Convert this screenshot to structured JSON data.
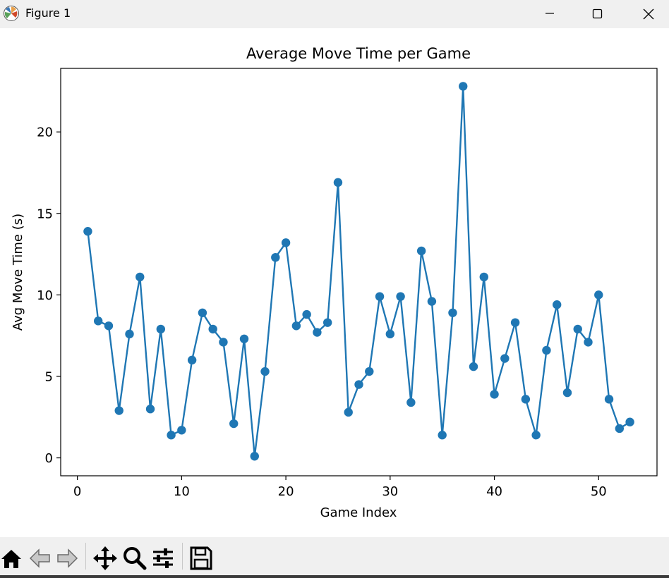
{
  "window": {
    "title": "Figure 1",
    "icons": [
      "matplotlib-logo-icon",
      "minimize-icon",
      "maximize-icon",
      "close-icon"
    ]
  },
  "toolbar": {
    "buttons": [
      "home-icon",
      "back-arrow-icon",
      "forward-arrow-icon",
      "pan-move-icon",
      "zoom-magnifier-icon",
      "configure-subplots-icon",
      "save-floppy-icon"
    ]
  },
  "colors": {
    "series": "#1f77b4",
    "chrome": "#f0f0f0"
  },
  "chart_data": {
    "type": "line",
    "title": "Average Move Time per Game",
    "xlabel": "Game Index",
    "ylabel": "Avg Move Time (s)",
    "xlim": [
      -1.6,
      55.6
    ],
    "ylim": [
      -1.1,
      23.9
    ],
    "xticks": [
      0,
      10,
      20,
      30,
      40,
      50
    ],
    "yticks": [
      0,
      5,
      10,
      15,
      20
    ],
    "grid": false,
    "marker": "circle",
    "x": [
      1,
      2,
      3,
      4,
      5,
      6,
      7,
      8,
      9,
      10,
      11,
      12,
      13,
      14,
      15,
      16,
      17,
      18,
      19,
      20,
      21,
      22,
      23,
      24,
      25,
      26,
      27,
      28,
      29,
      30,
      31,
      32,
      33,
      34,
      35,
      36,
      37,
      38,
      39,
      40,
      41,
      42,
      43,
      44,
      45,
      46,
      47,
      48,
      49,
      50,
      51,
      52,
      53
    ],
    "y": [
      13.9,
      8.4,
      8.1,
      2.9,
      7.6,
      11.1,
      3.0,
      7.9,
      1.4,
      1.7,
      6.0,
      8.9,
      7.9,
      7.1,
      2.1,
      7.3,
      0.1,
      5.3,
      12.3,
      13.2,
      8.1,
      8.8,
      7.7,
      8.3,
      16.9,
      2.8,
      4.5,
      5.3,
      9.9,
      7.6,
      9.9,
      3.4,
      12.7,
      9.6,
      1.4,
      8.9,
      22.8,
      5.6,
      11.1,
      3.9,
      6.1,
      8.3,
      3.6,
      1.4,
      6.6,
      9.4,
      4.0,
      7.9,
      7.1,
      10.0,
      3.6,
      1.8,
      2.2
    ]
  }
}
